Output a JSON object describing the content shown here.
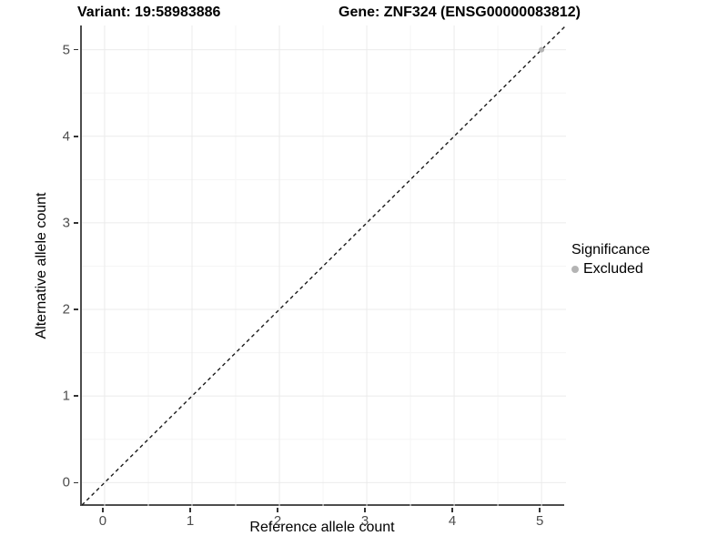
{
  "titles": {
    "variant": "Variant: 19:58983886",
    "gene": "Gene: ZNF324 (ENSG00000083812)"
  },
  "chart_data": {
    "type": "scatter",
    "xlabel": "Reference allele count",
    "ylabel": "Alternative allele count",
    "x_ticks": [
      0,
      1,
      2,
      3,
      4,
      5
    ],
    "y_ticks": [
      0,
      1,
      2,
      3,
      4,
      5
    ],
    "xlim": [
      -0.26,
      5.28
    ],
    "ylim": [
      -0.27,
      5.28
    ],
    "grid": {
      "major": true,
      "minor": true,
      "minor_step": 0.5
    },
    "reference_line": {
      "type": "abline",
      "slope": 1,
      "intercept": 0,
      "style": "dashed"
    },
    "points": [
      {
        "x": 5,
        "y": 5,
        "series": "Excluded"
      }
    ],
    "legend": {
      "title": "Significance",
      "position": "right",
      "entries": [
        {
          "label": "Excluded",
          "color": "#b4b4b4"
        }
      ]
    }
  },
  "colors": {
    "background": "#ffffff",
    "grid_major": "#ebebeb",
    "grid_minor": "#f5f5f5",
    "axis_line": "#4d4d4d",
    "tick_mark": "#333333",
    "tick_label": "#4d4d4d",
    "reference_line": "#1a1a1a",
    "excluded_point": "#b4b4b4"
  }
}
